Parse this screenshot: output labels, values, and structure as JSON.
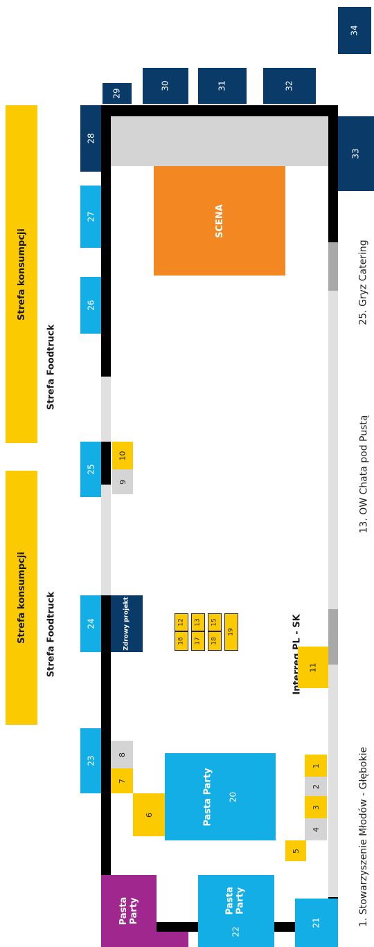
{
  "colors": {
    "foodtruck": "#13aee5",
    "big_stall": "#0a3a68",
    "small_stall": "#fcca00",
    "stall_gray": "#d4d4d4",
    "stage": "#f38721",
    "pasta_purple": "#a0278e",
    "wall": "#000000",
    "path_light": "#e0e0e0",
    "path_dark": "#a9a9a9",
    "zone_bar": "#fcca00"
  },
  "zones": {
    "consumption": "Strefa konsumpcji",
    "foodtruck": "Strefa Foodtruck",
    "interreg": "Interreg PL - SK"
  },
  "stage": {
    "label": "SCENA"
  },
  "pasta": {
    "purple_label": "Pasta Party",
    "block22_label": "Pasta Party",
    "block20_label": "Pasta Party"
  },
  "special": {
    "healthy_project": "Zdrowy projekt"
  },
  "stalls": {
    "n1": "1",
    "n2": "2",
    "n3": "3",
    "n4": "4",
    "n5": "5",
    "n6": "6",
    "n7": "7",
    "n8": "8",
    "n9": "9",
    "n10": "10",
    "n11": "11",
    "n12": "12",
    "n13": "13",
    "n15": "15",
    "n16": "16",
    "n17": "17",
    "n18": "18",
    "n19": "19",
    "n20": "20",
    "n21": "21",
    "n22": "22",
    "n23": "23",
    "n24": "24",
    "n25": "25",
    "n26": "26",
    "n27": "27",
    "n28": "28",
    "n29": "29",
    "n30": "30",
    "n31": "31",
    "n32": "32",
    "n33": "33",
    "n34": "34"
  },
  "legend": [
    "1. Stowarzyszenie Młodów - Głębokie",
    "13. OW Chata pod Pustą",
    "25. Gryz Catering"
  ]
}
